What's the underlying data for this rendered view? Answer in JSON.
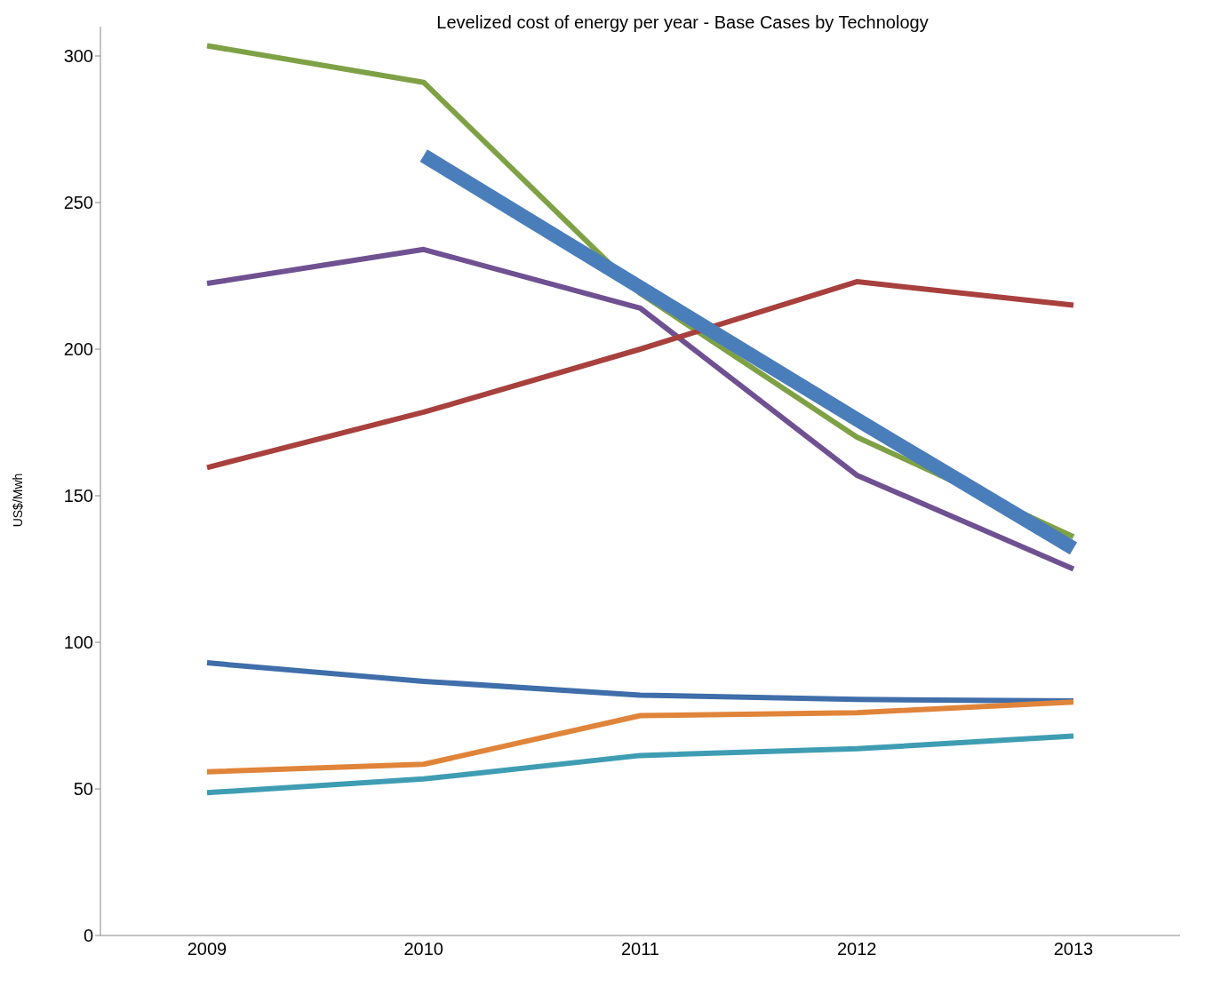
{
  "chart_data": {
    "type": "line",
    "title": "Levelized cost of energy per year - Base Cases by Technology",
    "ylabel": "US$/Mwh",
    "categories": [
      "2009",
      "2010",
      "2011",
      "2012",
      "2013"
    ],
    "series": [
      {
        "color": "#7fa146",
        "values": [
          303.5,
          291,
          219,
          170,
          136
        ]
      },
      {
        "color": "#6f5192",
        "values": [
          222.4,
          234,
          214,
          157,
          125
        ]
      },
      {
        "color": "#a8403d",
        "values": [
          159.6,
          178.5,
          200,
          223,
          215
        ]
      },
      {
        "color": "#3f6eaa",
        "values": [
          93,
          86.7,
          82,
          80.5,
          80
        ]
      },
      {
        "color": "#e0843a",
        "values": [
          55.8,
          58.4,
          75,
          76,
          79.6
        ]
      },
      {
        "color": "#3f9db3",
        "values": [
          48.7,
          53.4,
          61.4,
          63.7,
          68
        ]
      },
      {
        "type": "line",
        "color": "#4a7ebb",
        "values": [
          null,
          266,
          221,
          176,
          132
        ]
      }
    ],
    "ylim": [
      0,
      310
    ],
    "yticks": [
      0,
      50,
      100,
      150,
      200,
      250,
      300
    ],
    "grid": false,
    "legend": false,
    "marker": "none",
    "line_style": "solid"
  }
}
